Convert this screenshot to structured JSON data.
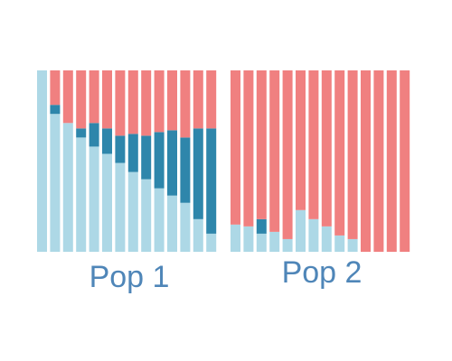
{
  "colors": {
    "background": "#ffffff",
    "light_blue": "#add8e6",
    "dark_blue": "#2e86ab",
    "red": "#f08080",
    "label": "#4f86b8"
  },
  "chart_data": {
    "type": "bar",
    "stacked": true,
    "normalized": true,
    "ylim": [
      0,
      1
    ],
    "grid": false,
    "legend": "none",
    "panels": [
      {
        "label": "Pop 1",
        "series": [
          {
            "color": "light_blue",
            "values": [
              1.0,
              0.76,
              0.71,
              0.63,
              0.58,
              0.54,
              0.49,
              0.44,
              0.4,
              0.35,
              0.31,
              0.27,
              0.18,
              0.1
            ]
          },
          {
            "color": "dark_blue",
            "values": [
              0.0,
              0.05,
              0.0,
              0.05,
              0.13,
              0.14,
              0.15,
              0.21,
              0.24,
              0.31,
              0.36,
              0.36,
              0.5,
              0.58
            ]
          },
          {
            "color": "red",
            "values": [
              0.0,
              0.19,
              0.29,
              0.32,
              0.29,
              0.32,
              0.36,
              0.35,
              0.36,
              0.34,
              0.33,
              0.37,
              0.32,
              0.32
            ]
          }
        ]
      },
      {
        "label": "Pop 2",
        "series": [
          {
            "color": "light_blue",
            "values": [
              0.15,
              0.14,
              0.1,
              0.11,
              0.07,
              0.23,
              0.18,
              0.14,
              0.09,
              0.07,
              0.0,
              0.0,
              0.0,
              0.0
            ]
          },
          {
            "color": "dark_blue",
            "values": [
              0.0,
              0.0,
              0.08,
              0.0,
              0.0,
              0.0,
              0.0,
              0.0,
              0.0,
              0.0,
              0.0,
              0.0,
              0.0,
              0.0
            ]
          },
          {
            "color": "red",
            "values": [
              0.85,
              0.86,
              0.82,
              0.89,
              0.93,
              0.77,
              0.82,
              0.86,
              0.91,
              0.93,
              1.0,
              1.0,
              1.0,
              1.0
            ]
          }
        ]
      }
    ]
  }
}
